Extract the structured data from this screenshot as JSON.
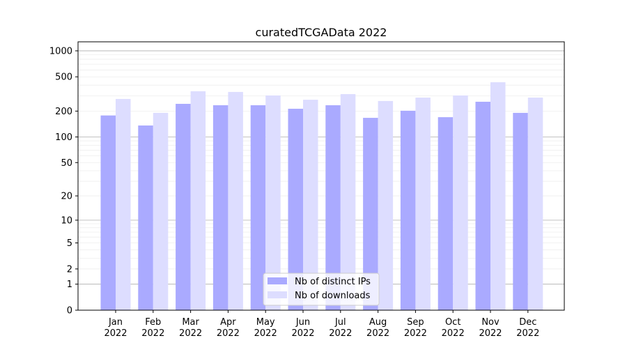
{
  "chart_data": {
    "type": "bar",
    "title": "curatedTCGAData 2022",
    "xlabel": "",
    "ylabel": "",
    "yscale": "symlog (log10(1+y))",
    "ylim": [
      0,
      1300
    ],
    "yticks": [
      0,
      1,
      2,
      5,
      10,
      20,
      50,
      100,
      200,
      500,
      1000
    ],
    "grid": true,
    "legend_position": "bottom-center",
    "categories": [
      "Jan\n2022",
      "Feb\n2022",
      "Mar\n2022",
      "Apr\n2022",
      "May\n2022",
      "Jun\n2022",
      "Jul\n2022",
      "Aug\n2022",
      "Sep\n2022",
      "Oct\n2022",
      "Nov\n2022",
      "Dec\n2022"
    ],
    "series": [
      {
        "name": "Nb of distinct IPs",
        "color": "#aaaaff",
        "values": [
          178,
          136,
          243,
          234,
          234,
          213,
          234,
          167,
          202,
          170,
          257,
          191
        ]
      },
      {
        "name": "Nb of downloads",
        "color": "#ddddff",
        "values": [
          277,
          191,
          340,
          334,
          304,
          271,
          315,
          262,
          287,
          304,
          433,
          287
        ]
      }
    ]
  }
}
